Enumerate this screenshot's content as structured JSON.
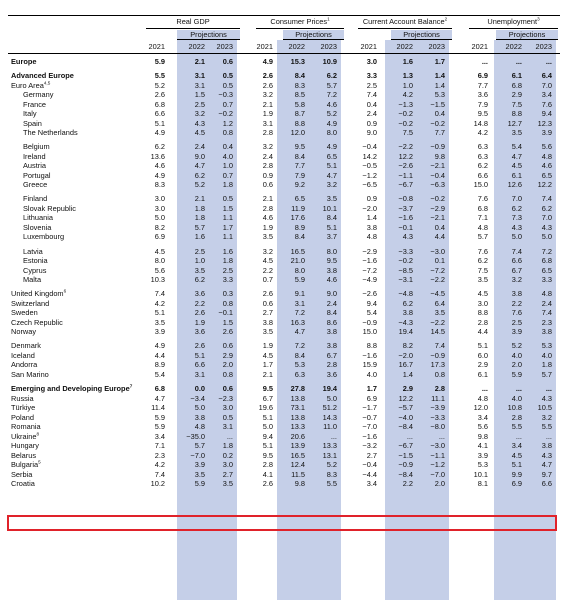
{
  "header": {
    "groups": [
      {
        "key": "gdp",
        "label": "Real GDP",
        "sup": ""
      },
      {
        "key": "cpi",
        "label": "Consumer Prices",
        "sup": "1"
      },
      {
        "key": "cab",
        "label": "Current Account Balance",
        "sup": "2"
      },
      {
        "key": "unemp",
        "label": "Unemployment",
        "sup": "3"
      }
    ],
    "projections_label": "Projections",
    "years": [
      "2021",
      "2022",
      "2023"
    ]
  },
  "rows": [
    {
      "label": "Europe",
      "sup": "",
      "bold": true,
      "indent": 0,
      "vals": [
        "5.9",
        "2.1",
        "0.6",
        "4.9",
        "15.3",
        "10.9",
        "3.0",
        "1.6",
        "1.7",
        "...",
        "...",
        "..."
      ]
    },
    {
      "gap": true
    },
    {
      "label": "Advanced Europe",
      "sup": "",
      "bold": true,
      "indent": 1,
      "vals": [
        "5.5",
        "3.1",
        "0.5",
        "2.6",
        "8.4",
        "6.2",
        "3.3",
        "1.3",
        "1.4",
        "6.9",
        "6.1",
        "6.4"
      ]
    },
    {
      "label": "Euro Area",
      "sup": "4,5",
      "bold": false,
      "indent": 1,
      "vals": [
        "5.2",
        "3.1",
        "0.5",
        "2.6",
        "8.3",
        "5.7",
        "2.5",
        "1.0",
        "1.4",
        "7.7",
        "6.8",
        "7.0"
      ]
    },
    {
      "label": "Germany",
      "sup": "",
      "bold": false,
      "indent": 2,
      "vals": [
        "2.6",
        "1.5",
        "−0.3",
        "3.2",
        "8.5",
        "7.2",
        "7.4",
        "4.2",
        "5.3",
        "3.6",
        "2.9",
        "3.4"
      ]
    },
    {
      "label": "France",
      "sup": "",
      "bold": false,
      "indent": 2,
      "vals": [
        "6.8",
        "2.5",
        "0.7",
        "2.1",
        "5.8",
        "4.6",
        "0.4",
        "−1.3",
        "−1.5",
        "7.9",
        "7.5",
        "7.6"
      ]
    },
    {
      "label": "Italy",
      "sup": "",
      "bold": false,
      "indent": 2,
      "vals": [
        "6.6",
        "3.2",
        "−0.2",
        "1.9",
        "8.7",
        "5.2",
        "2.4",
        "−0.2",
        "0.4",
        "9.5",
        "8.8",
        "9.4"
      ]
    },
    {
      "label": "Spain",
      "sup": "",
      "bold": false,
      "indent": 2,
      "vals": [
        "5.1",
        "4.3",
        "1.2",
        "3.1",
        "8.8",
        "4.9",
        "0.9",
        "−0.2",
        "−0.2",
        "14.8",
        "12.7",
        "12.3"
      ]
    },
    {
      "label": "The Netherlands",
      "sup": "",
      "bold": false,
      "indent": 2,
      "vals": [
        "4.9",
        "4.5",
        "0.8",
        "2.8",
        "12.0",
        "8.0",
        "9.0",
        "7.5",
        "7.7",
        "4.2",
        "3.5",
        "3.9"
      ]
    },
    {
      "gap": true
    },
    {
      "label": "Belgium",
      "sup": "",
      "bold": false,
      "indent": 2,
      "vals": [
        "6.2",
        "2.4",
        "0.4",
        "3.2",
        "9.5",
        "4.9",
        "−0.4",
        "−2.2",
        "−0.9",
        "6.3",
        "5.4",
        "5.6"
      ]
    },
    {
      "label": "Ireland",
      "sup": "",
      "bold": false,
      "indent": 2,
      "vals": [
        "13.6",
        "9.0",
        "4.0",
        "2.4",
        "8.4",
        "6.5",
        "14.2",
        "12.2",
        "9.8",
        "6.3",
        "4.7",
        "4.8"
      ]
    },
    {
      "label": "Austria",
      "sup": "",
      "bold": false,
      "indent": 2,
      "vals": [
        "4.6",
        "4.7",
        "1.0",
        "2.8",
        "7.7",
        "5.1",
        "−0.5",
        "−2.6",
        "−2.1",
        "6.2",
        "4.5",
        "4.6"
      ]
    },
    {
      "label": "Portugal",
      "sup": "",
      "bold": false,
      "indent": 2,
      "vals": [
        "4.9",
        "6.2",
        "0.7",
        "0.9",
        "7.9",
        "4.7",
        "−1.2",
        "−1.1",
        "−0.4",
        "6.6",
        "6.1",
        "6.5"
      ]
    },
    {
      "label": "Greece",
      "sup": "",
      "bold": false,
      "indent": 2,
      "vals": [
        "8.3",
        "5.2",
        "1.8",
        "0.6",
        "9.2",
        "3.2",
        "−6.5",
        "−6.7",
        "−6.3",
        "15.0",
        "12.6",
        "12.2"
      ]
    },
    {
      "gap": true
    },
    {
      "label": "Finland",
      "sup": "",
      "bold": false,
      "indent": 2,
      "vals": [
        "3.0",
        "2.1",
        "0.5",
        "2.1",
        "6.5",
        "3.5",
        "0.9",
        "−0.8",
        "−0.2",
        "7.6",
        "7.0",
        "7.4"
      ]
    },
    {
      "label": "Slovak Republic",
      "sup": "",
      "bold": false,
      "indent": 2,
      "vals": [
        "3.0",
        "1.8",
        "1.5",
        "2.8",
        "11.9",
        "10.1",
        "−2.0",
        "−3.7",
        "−2.9",
        "6.8",
        "6.2",
        "6.2"
      ]
    },
    {
      "label": "Lithuania",
      "sup": "",
      "bold": false,
      "indent": 2,
      "vals": [
        "5.0",
        "1.8",
        "1.1",
        "4.6",
        "17.6",
        "8.4",
        "1.4",
        "−1.6",
        "−2.1",
        "7.1",
        "7.3",
        "7.0"
      ]
    },
    {
      "label": "Slovenia",
      "sup": "",
      "bold": false,
      "indent": 2,
      "vals": [
        "8.2",
        "5.7",
        "1.7",
        "1.9",
        "8.9",
        "5.1",
        "3.8",
        "−0.1",
        "0.4",
        "4.8",
        "4.3",
        "4.3"
      ]
    },
    {
      "label": "Luxembourg",
      "sup": "",
      "bold": false,
      "indent": 2,
      "vals": [
        "6.9",
        "1.6",
        "1.1",
        "3.5",
        "8.4",
        "3.7",
        "4.8",
        "4.3",
        "4.4",
        "5.7",
        "5.0",
        "5.0"
      ]
    },
    {
      "gap": true
    },
    {
      "label": "Latvia",
      "sup": "",
      "bold": false,
      "indent": 2,
      "vals": [
        "4.5",
        "2.5",
        "1.6",
        "3.2",
        "16.5",
        "8.0",
        "−2.9",
        "−3.3",
        "−3.0",
        "7.6",
        "7.4",
        "7.2"
      ]
    },
    {
      "label": "Estonia",
      "sup": "",
      "bold": false,
      "indent": 2,
      "vals": [
        "8.0",
        "1.0",
        "1.8",
        "4.5",
        "21.0",
        "9.5",
        "−1.6",
        "−0.2",
        "0.1",
        "6.2",
        "6.6",
        "6.8"
      ]
    },
    {
      "label": "Cyprus",
      "sup": "",
      "bold": false,
      "indent": 2,
      "vals": [
        "5.6",
        "3.5",
        "2.5",
        "2.2",
        "8.0",
        "3.8",
        "−7.2",
        "−8.5",
        "−7.2",
        "7.5",
        "6.7",
        "6.5"
      ]
    },
    {
      "label": "Malta",
      "sup": "",
      "bold": false,
      "indent": 2,
      "vals": [
        "10.3",
        "6.2",
        "3.3",
        "0.7",
        "5.9",
        "4.6",
        "−4.9",
        "−3.1",
        "−2.2",
        "3.5",
        "3.2",
        "3.3"
      ]
    },
    {
      "gap": true
    },
    {
      "label": "United Kingdom",
      "sup": "6",
      "bold": false,
      "indent": 1,
      "vals": [
        "7.4",
        "3.6",
        "0.3",
        "2.6",
        "9.1",
        "9.0",
        "−2.6",
        "−4.8",
        "−4.5",
        "4.5",
        "3.8",
        "4.8"
      ]
    },
    {
      "label": "Switzerland",
      "sup": "",
      "bold": false,
      "indent": 1,
      "vals": [
        "4.2",
        "2.2",
        "0.8",
        "0.6",
        "3.1",
        "2.4",
        "9.4",
        "6.2",
        "6.4",
        "3.0",
        "2.2",
        "2.4"
      ]
    },
    {
      "label": "Sweden",
      "sup": "",
      "bold": false,
      "indent": 1,
      "vals": [
        "5.1",
        "2.6",
        "−0.1",
        "2.7",
        "7.2",
        "8.4",
        "5.4",
        "3.8",
        "3.5",
        "8.8",
        "7.6",
        "7.4"
      ]
    },
    {
      "label": "Czech Republic",
      "sup": "",
      "bold": false,
      "indent": 1,
      "vals": [
        "3.5",
        "1.9",
        "1.5",
        "3.8",
        "16.3",
        "8.6",
        "−0.9",
        "−4.3",
        "−2.2",
        "2.8",
        "2.5",
        "2.3"
      ]
    },
    {
      "label": "Norway",
      "sup": "",
      "bold": false,
      "indent": 1,
      "vals": [
        "3.9",
        "3.6",
        "2.6",
        "3.5",
        "4.7",
        "3.8",
        "15.0",
        "19.4",
        "14.5",
        "4.4",
        "3.9",
        "3.8"
      ]
    },
    {
      "gap": true
    },
    {
      "label": "Denmark",
      "sup": "",
      "bold": false,
      "indent": 1,
      "vals": [
        "4.9",
        "2.6",
        "0.6",
        "1.9",
        "7.2",
        "3.8",
        "8.8",
        "8.2",
        "7.4",
        "5.1",
        "5.2",
        "5.3"
      ]
    },
    {
      "label": "Iceland",
      "sup": "",
      "bold": false,
      "indent": 1,
      "vals": [
        "4.4",
        "5.1",
        "2.9",
        "4.5",
        "8.4",
        "6.7",
        "−1.6",
        "−2.0",
        "−0.9",
        "6.0",
        "4.0",
        "4.0"
      ]
    },
    {
      "label": "Andorra",
      "sup": "",
      "bold": false,
      "indent": 1,
      "vals": [
        "8.9",
        "6.6",
        "2.0",
        "1.7",
        "5.3",
        "2.8",
        "15.9",
        "16.7",
        "17.3",
        "2.9",
        "2.0",
        "1.8"
      ]
    },
    {
      "label": "San Marino",
      "sup": "",
      "bold": false,
      "indent": 1,
      "vals": [
        "5.4",
        "3.1",
        "0.8",
        "2.1",
        "6.3",
        "3.6",
        "4.0",
        "1.4",
        "0.8",
        "6.1",
        "5.9",
        "5.7"
      ]
    },
    {
      "gap": true
    },
    {
      "label": "Emerging and Developing Europe",
      "sup": "7",
      "bold": true,
      "indent": 1,
      "vals": [
        "6.8",
        "0.0",
        "0.6",
        "9.5",
        "27.8",
        "19.4",
        "1.7",
        "2.9",
        "2.8",
        "...",
        "...",
        "..."
      ]
    },
    {
      "label": "Russia",
      "sup": "",
      "bold": false,
      "indent": 1,
      "vals": [
        "4.7",
        "−3.4",
        "−2.3",
        "6.7",
        "13.8",
        "5.0",
        "6.9",
        "12.2",
        "11.1",
        "4.8",
        "4.0",
        "4.3"
      ]
    },
    {
      "label": "Türkiye",
      "sup": "",
      "bold": false,
      "indent": 1,
      "vals": [
        "11.4",
        "5.0",
        "3.0",
        "19.6",
        "73.1",
        "51.2",
        "−1.7",
        "−5.7",
        "−3.9",
        "12.0",
        "10.8",
        "10.5"
      ]
    },
    {
      "label": "Poland",
      "sup": "",
      "bold": false,
      "indent": 1,
      "vals": [
        "5.9",
        "3.8",
        "0.5",
        "5.1",
        "13.8",
        "14.3",
        "−0.7",
        "−4.0",
        "−3.3",
        "3.4",
        "2.8",
        "3.2"
      ]
    },
    {
      "label": "Romania",
      "sup": "",
      "bold": false,
      "indent": 1,
      "vals": [
        "5.9",
        "4.8",
        "3.1",
        "5.0",
        "13.3",
        "11.0",
        "−7.0",
        "−8.4",
        "−8.0",
        "5.6",
        "5.5",
        "5.5"
      ]
    },
    {
      "label": "Ukraine",
      "sup": "8",
      "bold": false,
      "indent": 1,
      "vals": [
        "3.4",
        "−35.0",
        "...",
        "9.4",
        "20.6",
        "...",
        "−1.6",
        "...",
        "...",
        "9.8",
        "...",
        "..."
      ]
    },
    {
      "label": "Hungary",
      "sup": "",
      "bold": false,
      "indent": 1,
      "vals": [
        "7.1",
        "5.7",
        "1.8",
        "5.1",
        "13.9",
        "13.3",
        "−3.2",
        "−6.7",
        "−3.0",
        "4.1",
        "3.4",
        "3.8"
      ]
    },
    {
      "label": "Belarus",
      "sup": "",
      "bold": false,
      "indent": 1,
      "vals": [
        "2.3",
        "−7.0",
        "0.2",
        "9.5",
        "16.5",
        "13.1",
        "2.7",
        "−1.5",
        "−1.1",
        "3.9",
        "4.5",
        "4.3"
      ]
    },
    {
      "label": "Bulgaria",
      "sup": "5",
      "bold": false,
      "indent": 1,
      "vals": [
        "4.2",
        "3.9",
        "3.0",
        "2.8",
        "12.4",
        "5.2",
        "−0.4",
        "−0.9",
        "−1.2",
        "5.3",
        "5.1",
        "4.7"
      ]
    },
    {
      "label": "Serbia",
      "sup": "",
      "bold": false,
      "indent": 1,
      "vals": [
        "7.4",
        "3.5",
        "2.7",
        "4.1",
        "11.5",
        "8.3",
        "−4.4",
        "−8.4",
        "−7.0",
        "10.1",
        "9.9",
        "9.7"
      ]
    },
    {
      "label": "Croatia",
      "sup": "",
      "bold": false,
      "indent": 1,
      "vals": [
        "10.2",
        "5.9",
        "3.5",
        "2.6",
        "9.8",
        "5.5",
        "3.4",
        "2.2",
        "2.0",
        "8.1",
        "6.9",
        "6.6"
      ]
    }
  ]
}
